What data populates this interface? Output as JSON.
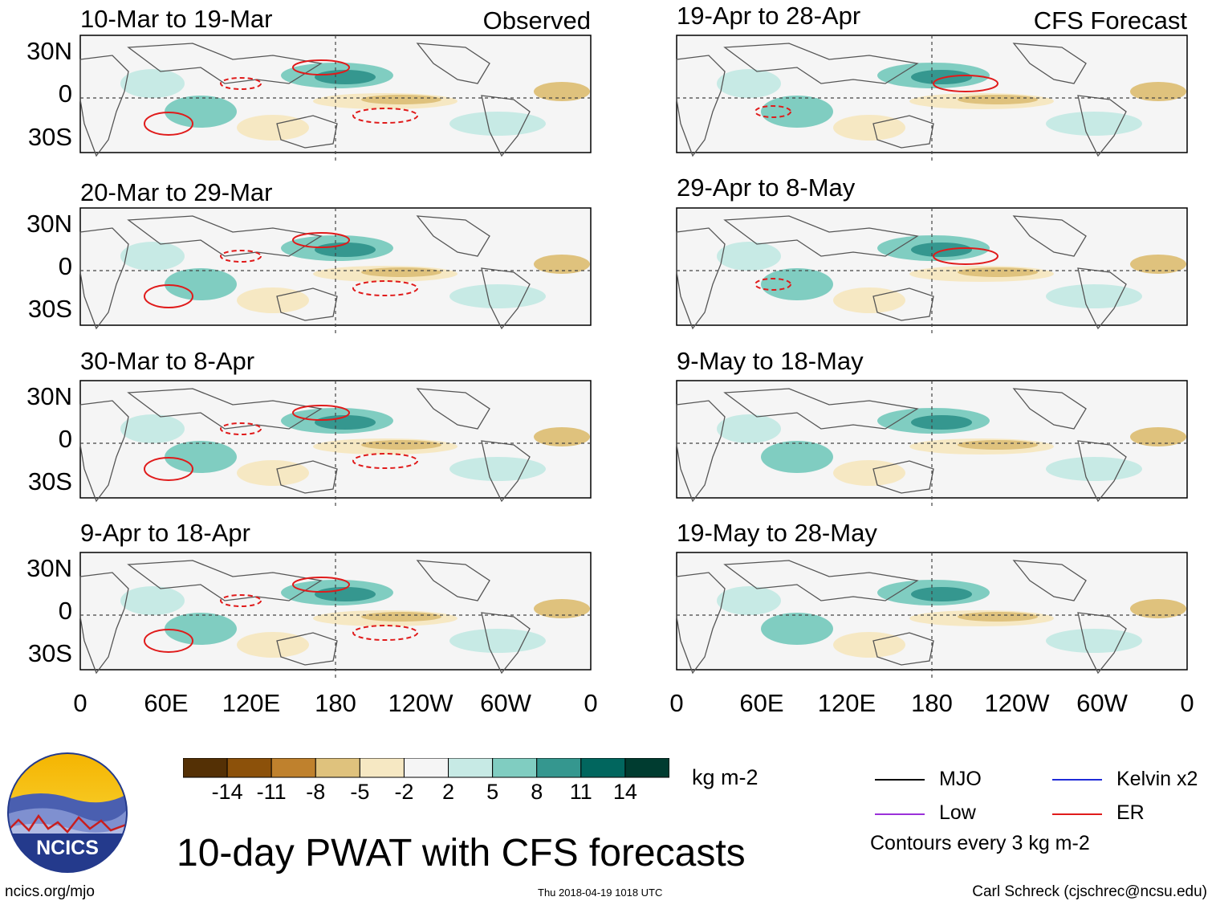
{
  "panels_left": [
    {
      "title": "10-Mar to 19-Mar",
      "label": "Observed"
    },
    {
      "title": "20-Mar to 29-Mar",
      "label": ""
    },
    {
      "title": "30-Mar to 8-Apr",
      "label": ""
    },
    {
      "title": "9-Apr to 18-Apr",
      "label": ""
    }
  ],
  "panels_right": [
    {
      "title": "19-Apr to 28-Apr",
      "label": "CFS Forecast"
    },
    {
      "title": "29-Apr to 8-May",
      "label": ""
    },
    {
      "title": "9-May to 18-May",
      "label": ""
    },
    {
      "title": "19-May to 28-May",
      "label": ""
    }
  ],
  "lat_labels": [
    "30N",
    "0",
    "30S"
  ],
  "lon_labels": [
    "0",
    "60E",
    "120E",
    "180",
    "120W",
    "60W",
    "0"
  ],
  "colorbar": {
    "colors": [
      "#543005",
      "#8c510a",
      "#bf812d",
      "#dfc27d",
      "#f6e8c3",
      "#f5f5f5",
      "#c7eae5",
      "#80cdc1",
      "#35978f",
      "#01665e",
      "#003c30"
    ],
    "labels": [
      "-14",
      "-11",
      "-8",
      "-5",
      "-2",
      "2",
      "5",
      "8",
      "11",
      "14"
    ],
    "units": "kg m-2"
  },
  "legend": {
    "items": [
      {
        "label": "MJO",
        "color": "#000000"
      },
      {
        "label": "Kelvin x2",
        "color": "#1f2bd8"
      },
      {
        "label": "Low",
        "color": "#9b30d9"
      },
      {
        "label": "ER",
        "color": "#e01b1b"
      }
    ],
    "note": "Contours every 3 kg m-2"
  },
  "main_title": "10-day PWAT with CFS forecasts",
  "logo_text": "NCICS",
  "footer": {
    "left": "ncics.org/mjo",
    "center": "Thu 2018-04-19 1018 UTC",
    "right": "Carl Schreck (cjschrec@ncsu.edu)"
  }
}
